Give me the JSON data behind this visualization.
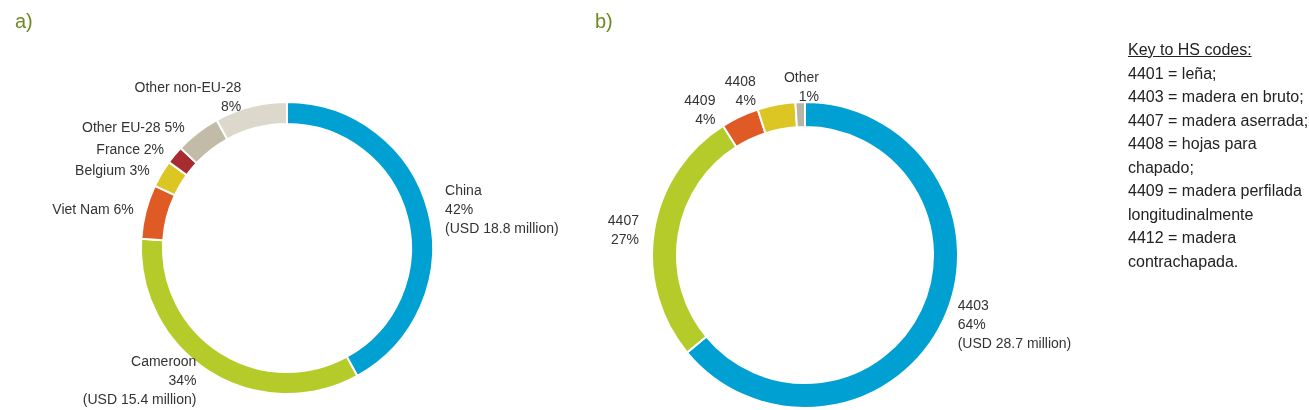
{
  "chart_data": [
    {
      "type": "donut",
      "title": "a)",
      "categories": [
        "China",
        "Cameroon",
        "Viet Nam",
        "Belgium",
        "France",
        "Other EU-28",
        "Other non-EU-28"
      ],
      "values": [
        42,
        34,
        6,
        3,
        2,
        5,
        8
      ],
      "colors": [
        "#00a0d2",
        "#b5cb2a",
        "#e05a25",
        "#dcc623",
        "#a82b2f",
        "#c2bba8",
        "#dcd8cc"
      ],
      "value_labels": [
        "42%\n(USD 18.8 million)",
        "34%\n(USD 15.4 million)",
        "6%",
        "3%",
        "2%",
        "5%",
        "8%"
      ],
      "legend": false
    },
    {
      "type": "donut",
      "title": "b)",
      "categories": [
        "4403",
        "4407",
        "4409",
        "4408",
        "Other"
      ],
      "values": [
        64,
        27,
        4,
        4,
        1
      ],
      "colors": [
        "#00a0d2",
        "#b5cb2a",
        "#e05a25",
        "#dcc623",
        "#b9b4a6"
      ],
      "value_labels": [
        "64%\n(USD 28.7 million)",
        "27%",
        "4%",
        "4%",
        "1%"
      ],
      "legend": false
    },
    {
      "type": "other",
      "title": "Key to HS codes:",
      "annotations": [
        "4401 = leña;",
        "4403 = madera en bruto;",
        "4407 = madera aserrada;",
        "4408 = hojas para chapado;",
        "4409 = madera perfilada longitudinalmente",
        "4412 = madera contrachapada."
      ]
    }
  ]
}
